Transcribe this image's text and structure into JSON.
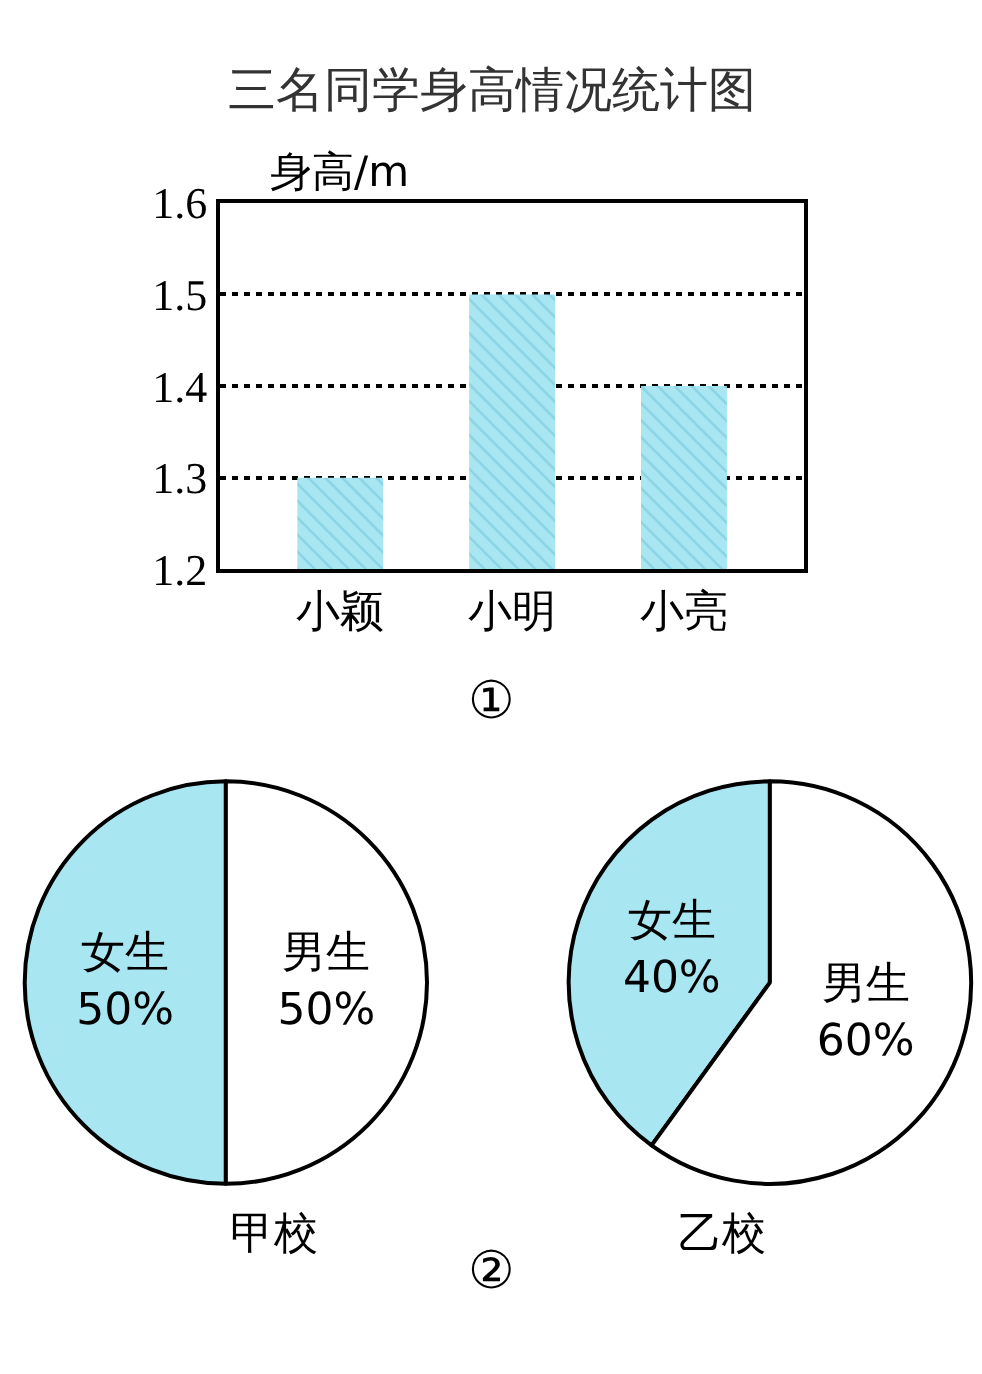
{
  "chart_data": [
    {
      "type": "bar",
      "title": "三名同学身高情况统计图",
      "ylabel": "身高/m",
      "categories": [
        "小颖",
        "小明",
        "小亮"
      ],
      "series": [
        {
          "color": "#a8e6f2",
          "values": [
            1.3,
            1.5,
            1.4
          ]
        }
      ],
      "ylim": [
        1.2,
        1.6
      ],
      "yticks": [
        1.2,
        1.3,
        1.4,
        1.5,
        1.6
      ],
      "grid": "y",
      "annotations": [
        "①"
      ]
    },
    {
      "type": "pie",
      "title": "甲校",
      "categories": [
        "女生",
        "男生"
      ],
      "values": [
        50,
        50
      ],
      "value_labels": [
        "50%",
        "50%"
      ],
      "colors": [
        "#a8e6f2",
        "#ffffff"
      ]
    },
    {
      "type": "pie",
      "title": "乙校",
      "categories": [
        "女生",
        "男生"
      ],
      "values": [
        40,
        60
      ],
      "value_labels": [
        "40%",
        "60%"
      ],
      "colors": [
        "#a8e6f2",
        "#ffffff"
      ],
      "annotations": [
        "②"
      ]
    }
  ]
}
